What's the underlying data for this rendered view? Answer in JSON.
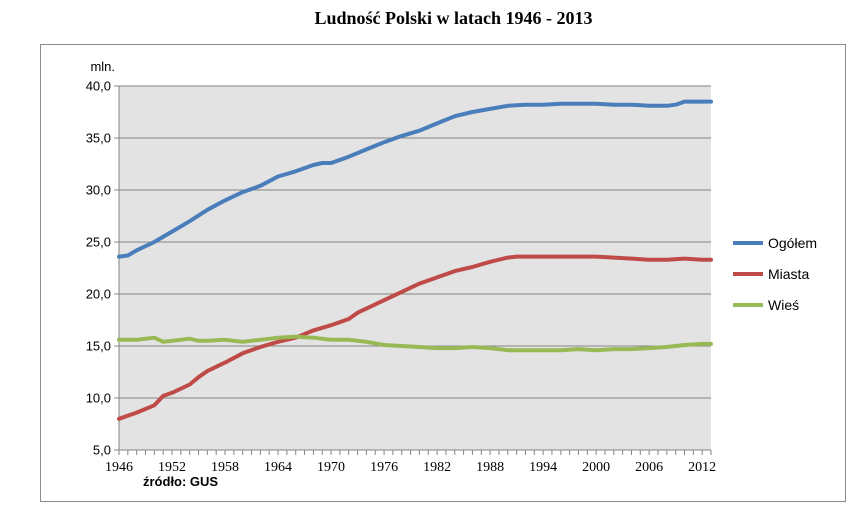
{
  "chart_data": {
    "type": "line",
    "title": "Ludność Polski w latach 1946 - 2013",
    "ylabel": "mln.",
    "xlabel": "",
    "ylim": [
      5,
      40
    ],
    "xlim": [
      1946,
      2013
    ],
    "yticks": [
      "5,0",
      "10,0",
      "15,0",
      "20,0",
      "25,0",
      "30,0",
      "35,0",
      "40,0"
    ],
    "xticks": [
      "1946",
      "1952",
      "1958",
      "1964",
      "1970",
      "1976",
      "1982",
      "1988",
      "1994",
      "2000",
      "2006",
      "2012"
    ],
    "grid": "horizontal",
    "legend_position": "right",
    "series": [
      {
        "name": "Ogółem",
        "color": "#4a7ebb",
        "x": [
          1946,
          1947,
          1948,
          1950,
          1952,
          1954,
          1956,
          1958,
          1960,
          1962,
          1964,
          1966,
          1968,
          1969,
          1970,
          1972,
          1974,
          1976,
          1978,
          1980,
          1982,
          1984,
          1986,
          1988,
          1990,
          1992,
          1994,
          1996,
          1998,
          2000,
          2002,
          2004,
          2006,
          2008,
          2009,
          2010,
          2011,
          2012,
          2013
        ],
        "y": [
          23.6,
          23.7,
          24.2,
          25.0,
          26.0,
          27.0,
          28.1,
          29.0,
          29.8,
          30.4,
          31.3,
          31.8,
          32.4,
          32.6,
          32.6,
          33.2,
          33.9,
          34.6,
          35.2,
          35.7,
          36.4,
          37.1,
          37.5,
          37.8,
          38.1,
          38.2,
          38.2,
          38.3,
          38.3,
          38.3,
          38.2,
          38.2,
          38.1,
          38.1,
          38.2,
          38.5,
          38.5,
          38.5,
          38.5
        ]
      },
      {
        "name": "Miasta",
        "color": "#be4b48",
        "x": [
          1946,
          1948,
          1950,
          1951,
          1952,
          1954,
          1955,
          1956,
          1958,
          1960,
          1962,
          1964,
          1966,
          1968,
          1970,
          1972,
          1973,
          1974,
          1976,
          1978,
          1980,
          1982,
          1984,
          1986,
          1988,
          1990,
          1991,
          1992,
          1994,
          1996,
          1998,
          2000,
          2002,
          2004,
          2006,
          2008,
          2010,
          2012,
          2013
        ],
        "y": [
          8.0,
          8.6,
          9.3,
          10.2,
          10.5,
          11.3,
          12.0,
          12.6,
          13.4,
          14.3,
          14.9,
          15.4,
          15.8,
          16.5,
          17.0,
          17.6,
          18.2,
          18.6,
          19.4,
          20.2,
          21.0,
          21.6,
          22.2,
          22.6,
          23.1,
          23.5,
          23.6,
          23.6,
          23.6,
          23.6,
          23.6,
          23.6,
          23.5,
          23.4,
          23.3,
          23.3,
          23.4,
          23.3,
          23.3
        ]
      },
      {
        "name": "Wieś",
        "color": "#98b954",
        "x": [
          1946,
          1948,
          1950,
          1951,
          1952,
          1954,
          1955,
          1956,
          1958,
          1960,
          1962,
          1964,
          1966,
          1968,
          1970,
          1972,
          1974,
          1976,
          1978,
          1980,
          1982,
          1984,
          1986,
          1988,
          1990,
          1992,
          1994,
          1996,
          1998,
          2000,
          2002,
          2004,
          2006,
          2008,
          2010,
          2012,
          2013
        ],
        "y": [
          15.6,
          15.6,
          15.8,
          15.4,
          15.5,
          15.7,
          15.5,
          15.5,
          15.6,
          15.4,
          15.6,
          15.8,
          15.9,
          15.8,
          15.6,
          15.6,
          15.4,
          15.1,
          15.0,
          14.9,
          14.8,
          14.8,
          14.9,
          14.8,
          14.6,
          14.6,
          14.6,
          14.6,
          14.7,
          14.6,
          14.7,
          14.7,
          14.8,
          14.9,
          15.1,
          15.2,
          15.2
        ]
      }
    ]
  },
  "source_note": "źródło: GUS"
}
